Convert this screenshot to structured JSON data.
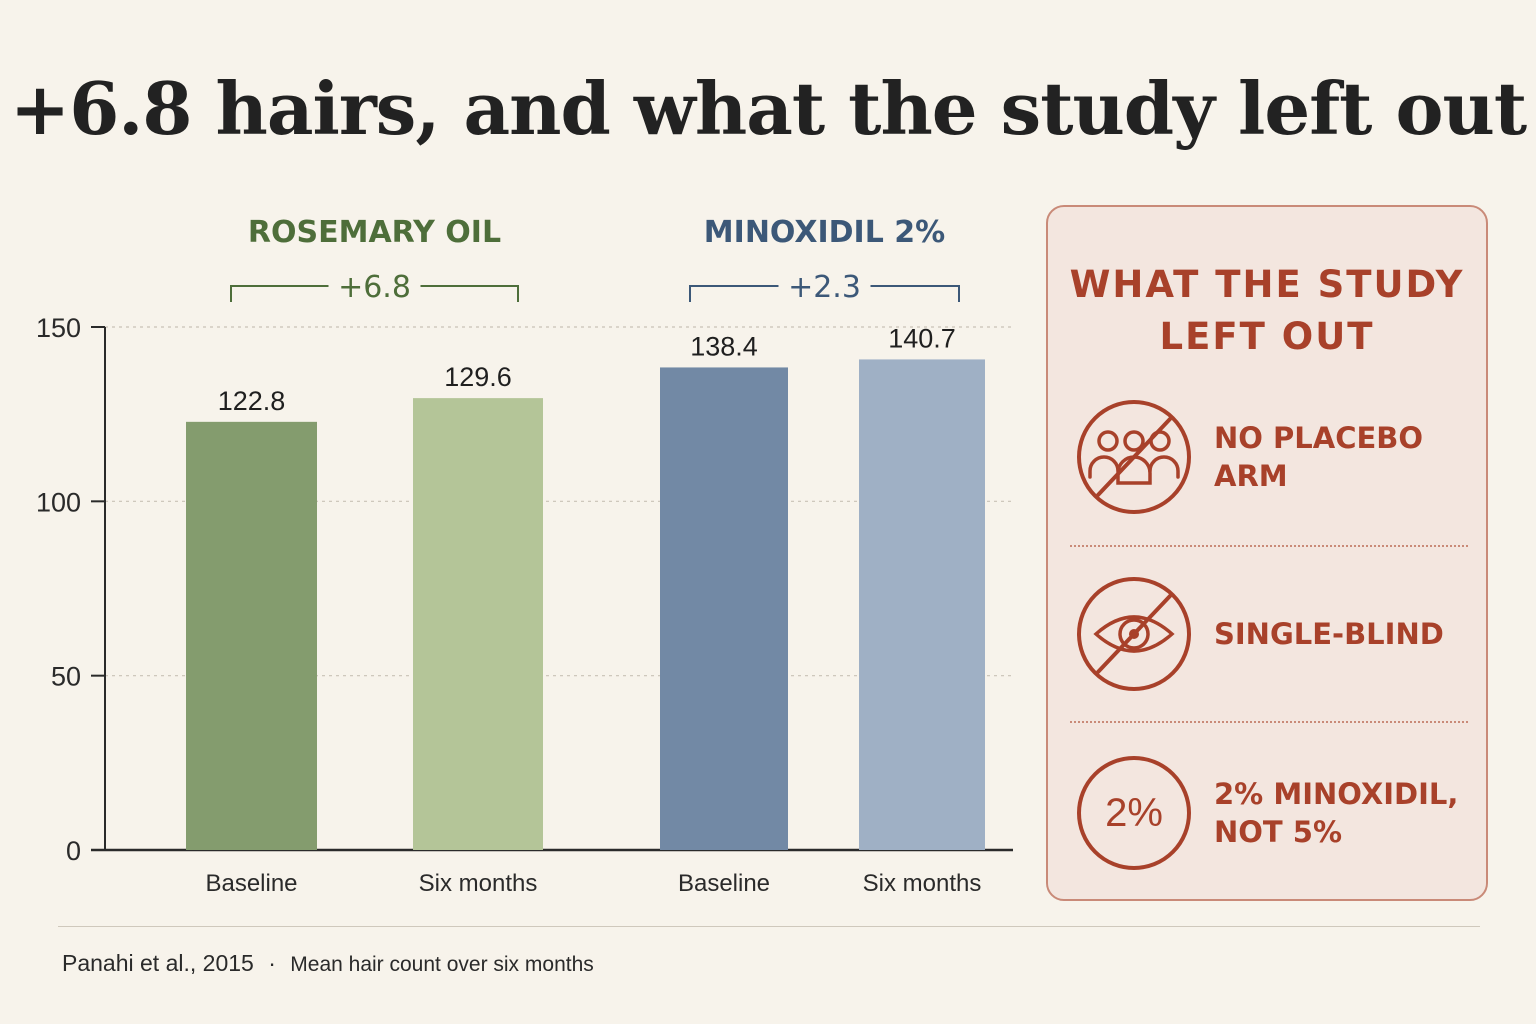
{
  "title": "+6.8 hairs, and what the study left out",
  "chart_data": {
    "type": "bar",
    "ylim": [
      0,
      150
    ],
    "yticks": [
      0,
      50,
      100,
      150
    ],
    "grid": true,
    "groups": [
      {
        "name": "ROSEMARY OIL",
        "delta_label": "+6.8",
        "color": "#4e6e3a",
        "categories": [
          "Baseline",
          "Six months"
        ],
        "values": [
          122.8,
          129.6
        ],
        "value_labels": [
          "122.8",
          "129.6"
        ],
        "bar_colors": [
          "#849c6e",
          "#b4c598"
        ]
      },
      {
        "name": "MINOXIDIL 2%",
        "delta_label": "+2.3",
        "color": "#3c5878",
        "categories": [
          "Baseline",
          "Six months"
        ],
        "values": [
          138.4,
          140.7
        ],
        "value_labels": [
          "138.4",
          "140.7"
        ],
        "bar_colors": [
          "#7289a5",
          "#9fb0c5"
        ]
      }
    ]
  },
  "caveats": {
    "title": "WHAT THE STUDY LEFT OUT",
    "accent_color": "#a8412a",
    "items": [
      {
        "icon": "no-group-icon",
        "text": "NO PLACEBO ARM"
      },
      {
        "icon": "no-eye-icon",
        "text": "SINGLE-BLIND"
      },
      {
        "icon": "percent-badge-icon",
        "badge": "2%",
        "text": "2% MINOXIDIL, NOT 5%"
      }
    ]
  },
  "footer": {
    "source": "Panahi et al., 2015",
    "separator": "·",
    "description": "Mean hair count over six months"
  }
}
